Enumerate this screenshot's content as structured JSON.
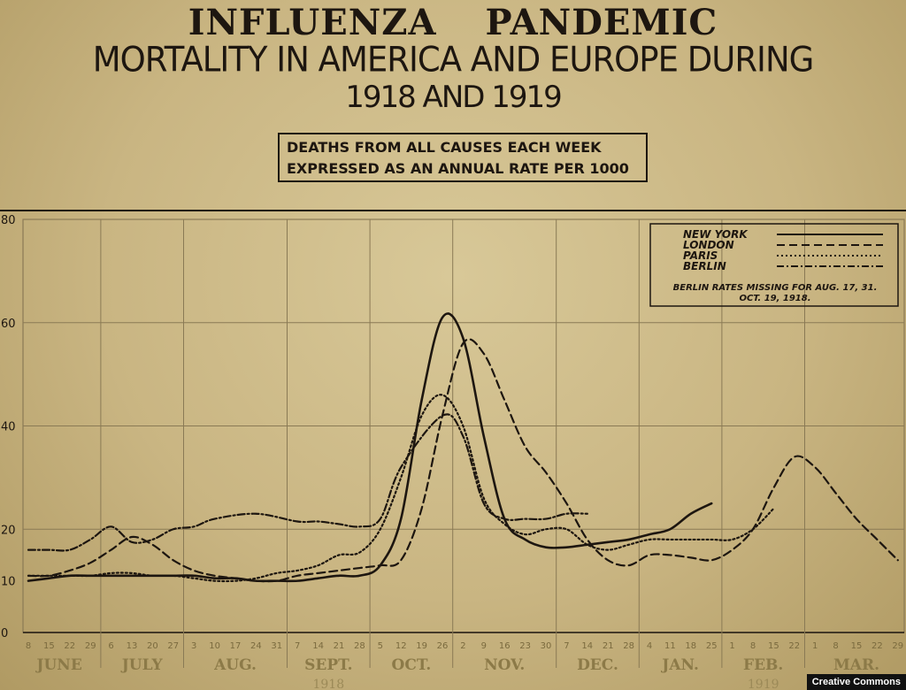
{
  "chart_data": {
    "type": "line",
    "title": "INFLUENZA PANDEMIC",
    "subtitle": "MORTALITY IN AMERICA AND EUROPE DURING",
    "subtitle2": "1918 AND 1919",
    "ylabel_box": [
      "DEATHS FROM ALL CAUSES EACH WEEK",
      "EXPRESSED AS AN ANNUAL RATE PER 1000"
    ],
    "ylim": [
      0,
      80
    ],
    "y_ticks": [
      0,
      10,
      20,
      40,
      60,
      80
    ],
    "x_ticks": [
      "8",
      "15",
      "22",
      "29",
      "6",
      "13",
      "20",
      "27",
      "3",
      "10",
      "17",
      "24",
      "31",
      "7",
      "14",
      "21",
      "28",
      "5",
      "12",
      "19",
      "26",
      "2",
      "9",
      "16",
      "23",
      "30",
      "7",
      "14",
      "21",
      "28",
      "4",
      "11",
      "18",
      "25",
      "1",
      "8",
      "15",
      "22",
      "1",
      "8",
      "15",
      "22",
      "29"
    ],
    "months": [
      {
        "label": "JUNE",
        "start": 0,
        "end": 3
      },
      {
        "label": "JULY",
        "start": 4,
        "end": 7
      },
      {
        "label": "AUG.",
        "start": 8,
        "end": 12
      },
      {
        "label": "SEPT.",
        "start": 13,
        "end": 16
      },
      {
        "label": "OCT.",
        "start": 17,
        "end": 20
      },
      {
        "label": "NOV.",
        "start": 21,
        "end": 25
      },
      {
        "label": "DEC.",
        "start": 26,
        "end": 29
      },
      {
        "label": "JAN.",
        "start": 30,
        "end": 33
      },
      {
        "label": "FEB.",
        "start": 34,
        "end": 37
      },
      {
        "label": "MAR.",
        "start": 38,
        "end": 42
      }
    ],
    "years": [
      {
        "label": "1918",
        "at": 14.5
      },
      {
        "label": "1919",
        "at": 35.5
      }
    ],
    "grid": true,
    "legend_position": "top-right",
    "legend_note": [
      "BERLIN RATES MISSING FOR AUG. 17, 31.",
      "OCT. 19, 1918."
    ],
    "series": [
      {
        "name": "NEW YORK",
        "style": "solid",
        "values": [
          10,
          10.5,
          11,
          11,
          11,
          11,
          11,
          11,
          11,
          10.5,
          10.5,
          10,
          10,
          10,
          10.5,
          11,
          11,
          13,
          22,
          45,
          61,
          57,
          38,
          22,
          18,
          16.5,
          16.5,
          17,
          17.5,
          18,
          19,
          20,
          23,
          25
        ]
      },
      {
        "name": "LONDON",
        "style": "dashed",
        "values": [
          11,
          11,
          12,
          13.5,
          16,
          18.5,
          17,
          14,
          12,
          11,
          10.5,
          10,
          10,
          11,
          11.5,
          12,
          12.5,
          13,
          14,
          24,
          42,
          56,
          54,
          45,
          36,
          31,
          25,
          18,
          14,
          13,
          15,
          15,
          14.5,
          14,
          16,
          20,
          28,
          34,
          32,
          27,
          22,
          18,
          14
        ]
      },
      {
        "name": "PARIS",
        "style": "dotted",
        "values": [
          11,
          11,
          11,
          11,
          11.5,
          11.5,
          11,
          11,
          10.5,
          10,
          10,
          10.5,
          11.5,
          12,
          13,
          15,
          15.5,
          20,
          30,
          42,
          46,
          40,
          26,
          21,
          19,
          20,
          20,
          17,
          16,
          17,
          18,
          18,
          18,
          18,
          18,
          20,
          24
        ]
      },
      {
        "name": "BERLIN",
        "style": "dash-dot",
        "values": [
          16,
          16,
          16,
          18,
          20.5,
          17.5,
          18,
          20,
          20.5,
          22,
          null,
          23,
          null,
          21.5,
          21.5,
          21,
          20.5,
          22,
          32,
          null,
          42,
          38,
          25,
          22,
          22,
          22,
          23,
          23
        ]
      }
    ]
  },
  "credit": "Creative Commons"
}
